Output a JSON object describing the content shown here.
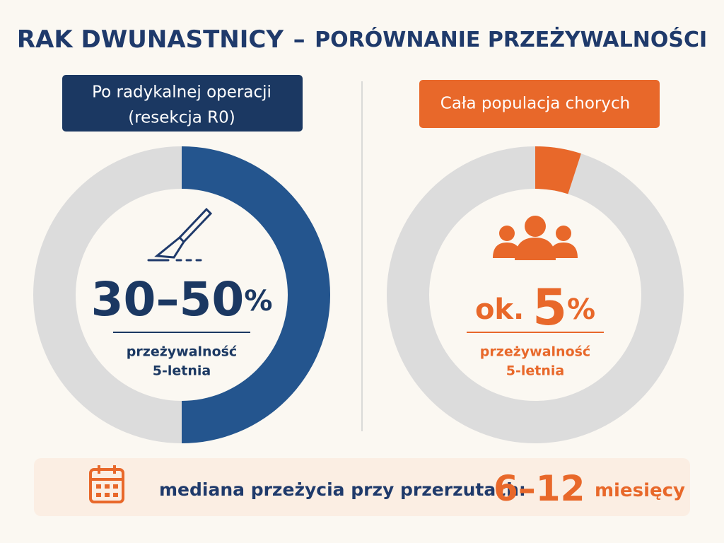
{
  "header": {
    "title_main": "RAK DWUNASTNICY",
    "title_dash": "–",
    "title_rest": "PORÓWNANIE PRZEŻYWALNOŚCI"
  },
  "panels": [
    {
      "label_lines": [
        "Po radykalnej operacji",
        "(resekcja R0)"
      ],
      "prefix": "",
      "number": "30–50",
      "unit": "%",
      "caption_lines": [
        "przeżywalność",
        "5-letnia"
      ],
      "fill_percent": 50
    },
    {
      "label_lines": [
        "Cała populacja chorych"
      ],
      "prefix": "ok.",
      "number": "5",
      "unit": "%",
      "caption_lines": [
        "przeżywalność",
        "5-letnia"
      ],
      "fill_percent": 5
    }
  ],
  "footer": {
    "text": "mediana przeżycia przy przerzutach:",
    "number": "6–12",
    "unit": "miesięcy"
  }
}
